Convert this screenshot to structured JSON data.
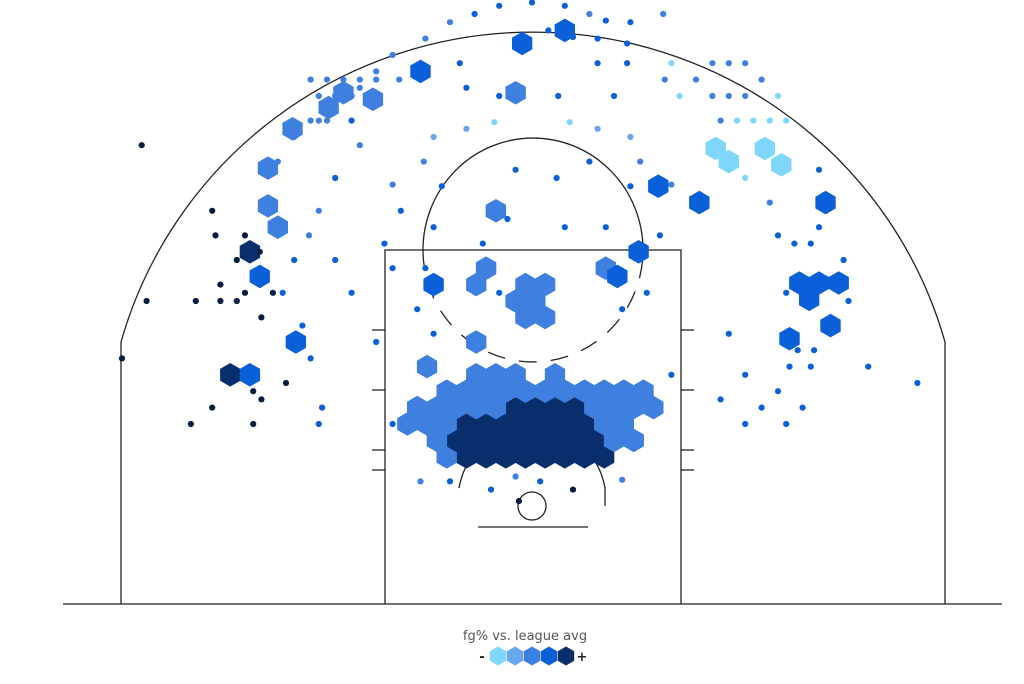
{
  "colors": {
    "tier1": "#7ed6fb",
    "tier2": "#6aa6ea",
    "tier3": "#3f7fe0",
    "tier4": "#0a60d8",
    "tier5": "#082f6b",
    "tier6": "#051e3f",
    "court": "#222222"
  },
  "legend": {
    "title": "fg% vs. league avg",
    "minus": "-",
    "plus": "+",
    "tiers": [
      "tier1",
      "tier2",
      "tier3",
      "tier4",
      "tier5"
    ]
  },
  "chart_data": {
    "type": "hexbin",
    "x_units": "ft from basket (left/right)",
    "y_units": "ft from baseline",
    "xlim": [
      -25,
      25
    ],
    "ylim": [
      0,
      35
    ],
    "hex_step_ft": 1.2,
    "shots": [
      [
        0.8,
        3.0,
        5,
        1
      ],
      [
        -0.4,
        3.0,
        5,
        1
      ],
      [
        2.0,
        3.0,
        5,
        1
      ],
      [
        -1.6,
        3.0,
        5,
        1
      ],
      [
        3.2,
        3.0,
        5,
        1
      ],
      [
        -2.8,
        3.0,
        5,
        1
      ],
      [
        4.4,
        3.0,
        5,
        1
      ],
      [
        -4.0,
        3.0,
        5,
        1
      ],
      [
        -5.2,
        3.0,
        3,
        1
      ],
      [
        0.2,
        4.0,
        5,
        1
      ],
      [
        -1.0,
        4.0,
        5,
        1
      ],
      [
        1.4,
        4.0,
        5,
        1
      ],
      [
        2.6,
        4.0,
        5,
        1
      ],
      [
        -2.2,
        4.0,
        5,
        1
      ],
      [
        3.8,
        4.0,
        5,
        1
      ],
      [
        -3.4,
        4.0,
        5,
        1
      ],
      [
        5.0,
        4.0,
        3,
        1
      ],
      [
        -4.6,
        4.0,
        5,
        1
      ],
      [
        -5.8,
        4.0,
        3,
        1
      ],
      [
        6.2,
        4.0,
        3,
        1
      ],
      [
        0.8,
        5.0,
        5,
        1
      ],
      [
        -0.4,
        5.0,
        5,
        1
      ],
      [
        2.0,
        5.0,
        5,
        1
      ],
      [
        -1.6,
        5.0,
        5,
        1
      ],
      [
        3.2,
        5.0,
        5,
        1
      ],
      [
        -2.8,
        5.0,
        5,
        1
      ],
      [
        4.4,
        5.0,
        3,
        1
      ],
      [
        -4.0,
        5.0,
        5,
        1
      ],
      [
        -5.2,
        5.0,
        3,
        1
      ],
      [
        5.6,
        5.0,
        3,
        1
      ],
      [
        -6.4,
        5.0,
        3,
        1
      ],
      [
        -7.6,
        5.0,
        3,
        1
      ],
      [
        0.2,
        6.0,
        5,
        1
      ],
      [
        -1.0,
        6.0,
        5,
        1
      ],
      [
        1.4,
        6.0,
        5,
        1
      ],
      [
        2.6,
        6.0,
        5,
        1
      ],
      [
        -2.2,
        6.0,
        3,
        1
      ],
      [
        3.8,
        6.0,
        3,
        1
      ],
      [
        -3.4,
        6.0,
        3,
        1
      ],
      [
        5.0,
        6.0,
        3,
        1
      ],
      [
        -4.6,
        6.0,
        3,
        1
      ],
      [
        -5.8,
        6.0,
        3,
        1
      ],
      [
        6.2,
        6.0,
        3,
        1
      ],
      [
        -7.0,
        6.0,
        3,
        1
      ],
      [
        7.4,
        6.0,
        3,
        1
      ],
      [
        0.8,
        7.0,
        3,
        1
      ],
      [
        -0.4,
        7.0,
        3,
        1
      ],
      [
        2.0,
        7.0,
        3,
        1
      ],
      [
        -1.6,
        7.0,
        3,
        1
      ],
      [
        3.2,
        7.0,
        3,
        1
      ],
      [
        -2.8,
        7.0,
        3,
        1
      ],
      [
        4.4,
        7.0,
        3,
        1
      ],
      [
        -4.0,
        7.0,
        3,
        1
      ],
      [
        -5.2,
        7.0,
        3,
        1
      ],
      [
        5.6,
        7.0,
        3,
        1
      ],
      [
        6.8,
        7.0,
        3,
        1
      ],
      [
        -1.0,
        8.0,
        3,
        1
      ],
      [
        -2.2,
        8.0,
        3,
        1
      ],
      [
        -3.4,
        8.0,
        3,
        1
      ],
      [
        1.4,
        8.0,
        3,
        1
      ],
      [
        -6.4,
        8.5,
        3,
        1
      ],
      [
        -3.4,
        10.0,
        3,
        1
      ],
      [
        -0.4,
        11.5,
        3,
        1
      ],
      [
        0.8,
        11.5,
        3,
        1
      ],
      [
        -1.0,
        12.5,
        3,
        1
      ],
      [
        0.2,
        12.5,
        3,
        1
      ],
      [
        -0.4,
        13.5,
        3,
        1
      ],
      [
        0.8,
        13.5,
        3,
        1
      ],
      [
        -3.4,
        13.5,
        3,
        1
      ],
      [
        -2.8,
        14.5,
        3,
        1
      ],
      [
        -2.2,
        18.0,
        3,
        1
      ],
      [
        4.5,
        14.5,
        3,
        1
      ],
      [
        -6.0,
        13.5,
        4,
        1
      ],
      [
        2.0,
        29.0,
        4,
        1
      ],
      [
        -0.6,
        28.2,
        4,
        1
      ],
      [
        -1.0,
        25.2,
        3,
        1
      ],
      [
        5.2,
        14.0,
        4,
        1
      ],
      [
        6.5,
        15.5,
        4,
        1
      ],
      [
        -6.8,
        26.5,
        4,
        1
      ],
      [
        -9.7,
        24.8,
        3,
        1
      ],
      [
        -11.5,
        25.2,
        3,
        1
      ],
      [
        -12.4,
        24.3,
        3,
        1
      ],
      [
        -14.6,
        23.0,
        3,
        1
      ],
      [
        -16.1,
        20.6,
        3,
        1
      ],
      [
        -16.1,
        18.3,
        3,
        1
      ],
      [
        -15.5,
        17.0,
        3,
        1
      ],
      [
        -17.2,
        15.5,
        5,
        1
      ],
      [
        -16.6,
        14.0,
        4,
        1
      ],
      [
        -18.4,
        8.0,
        5,
        1
      ],
      [
        -17.2,
        8.0,
        4,
        1
      ],
      [
        -14.4,
        10.0,
        4,
        1
      ],
      [
        10.2,
        18.5,
        4,
        1
      ],
      [
        7.7,
        19.5,
        4,
        1
      ],
      [
        11.2,
        21.8,
        1,
        1
      ],
      [
        12.0,
        21.0,
        1,
        1
      ],
      [
        14.2,
        21.8,
        1,
        1
      ],
      [
        15.2,
        20.8,
        1,
        1
      ],
      [
        17.9,
        18.5,
        4,
        1
      ],
      [
        16.3,
        13.6,
        4,
        1
      ],
      [
        17.5,
        13.6,
        4,
        1
      ],
      [
        18.7,
        13.6,
        4,
        1
      ],
      [
        16.9,
        12.6,
        4,
        1
      ],
      [
        18.2,
        11.0,
        4,
        1
      ],
      [
        15.7,
        10.2,
        4,
        1
      ],
      [
        -8.5,
        19.6,
        3,
        0
      ],
      [
        8.5,
        19.6,
        3,
        0
      ],
      [
        -8.1,
        26.0,
        3,
        0
      ],
      [
        8.1,
        26.0,
        3,
        0
      ],
      [
        -6.6,
        21.0,
        3,
        0
      ],
      [
        6.6,
        21.0,
        3,
        0
      ],
      [
        -6.0,
        22.5,
        2,
        0
      ],
      [
        6.0,
        22.5,
        2,
        0
      ],
      [
        -4.0,
        23.0,
        2,
        0
      ],
      [
        4.0,
        23.0,
        2,
        0
      ],
      [
        -2.3,
        23.4,
        1,
        0
      ],
      [
        2.3,
        23.4,
        1,
        0
      ],
      [
        -10.5,
        22.0,
        3,
        0
      ],
      [
        -12.0,
        20.0,
        4,
        0
      ],
      [
        -13.0,
        18.0,
        3,
        0
      ],
      [
        -13.6,
        16.5,
        3,
        0
      ],
      [
        -14.5,
        15.0,
        4,
        0
      ],
      [
        -15.2,
        13.0,
        4,
        0
      ],
      [
        -14.0,
        11.0,
        4,
        0
      ],
      [
        -13.5,
        9.0,
        4,
        0
      ],
      [
        -12.8,
        6.0,
        4,
        0
      ],
      [
        -15.0,
        7.5,
        6,
        0
      ],
      [
        -19.5,
        6.0,
        6,
        0
      ],
      [
        -16.5,
        6.5,
        6,
        0
      ],
      [
        -17.0,
        7.0,
        6,
        0
      ],
      [
        -20.5,
        12.5,
        6,
        0
      ],
      [
        -18.0,
        12.5,
        6,
        0
      ],
      [
        -19.0,
        13.5,
        6,
        0
      ],
      [
        -18.0,
        15.0,
        6,
        0
      ],
      [
        -15.8,
        13.0,
        6,
        0
      ],
      [
        -19.3,
        16.5,
        6,
        0
      ],
      [
        -17.5,
        16.5,
        6,
        0
      ],
      [
        -16.6,
        15.5,
        6,
        0
      ],
      [
        -17.5,
        13.0,
        6,
        0
      ],
      [
        -16.5,
        11.5,
        6,
        0
      ],
      [
        -19.0,
        12.5,
        6,
        0
      ],
      [
        -19.5,
        18.0,
        6,
        0
      ],
      [
        -25.0,
        9.0,
        6,
        0
      ],
      [
        -23.5,
        12.5,
        6,
        0
      ],
      [
        -23.8,
        22.0,
        6,
        0
      ],
      [
        -15.5,
        21.0,
        3,
        0
      ],
      [
        -14.5,
        22.5,
        3,
        0
      ],
      [
        -13.0,
        23.5,
        3,
        0
      ],
      [
        -12.0,
        24.5,
        3,
        0
      ],
      [
        -10.5,
        25.5,
        3,
        0
      ],
      [
        -9.5,
        26.5,
        3,
        0
      ],
      [
        -8.5,
        27.5,
        3,
        0
      ],
      [
        -6.5,
        28.5,
        3,
        0
      ],
      [
        -5.0,
        29.5,
        3,
        0
      ],
      [
        -3.5,
        30.0,
        4,
        0
      ],
      [
        -2.0,
        30.5,
        4,
        0
      ],
      [
        0.0,
        30.7,
        4,
        0
      ],
      [
        2.0,
        30.5,
        4,
        0
      ],
      [
        3.5,
        30.0,
        3,
        0
      ],
      [
        4.5,
        29.6,
        4,
        0
      ],
      [
        6.0,
        29.5,
        4,
        0
      ],
      [
        8.0,
        30.0,
        3,
        0
      ],
      [
        -13.5,
        26.0,
        3,
        0
      ],
      [
        -12.5,
        26.0,
        3,
        0
      ],
      [
        -11.5,
        26.0,
        3,
        0
      ],
      [
        -10.5,
        26.0,
        3,
        0
      ],
      [
        -9.5,
        26.0,
        3,
        0
      ],
      [
        -13.0,
        25.0,
        3,
        0
      ],
      [
        -12.0,
        25.0,
        3,
        0
      ],
      [
        -11.0,
        25.0,
        3,
        0
      ],
      [
        -10.0,
        25.0,
        3,
        0
      ],
      [
        -13.5,
        23.5,
        3,
        0
      ],
      [
        -12.5,
        23.5,
        3,
        0
      ],
      [
        -11.0,
        23.5,
        4,
        0
      ],
      [
        -4.4,
        27.0,
        4,
        0
      ],
      [
        -4.0,
        25.5,
        4,
        0
      ],
      [
        -2.0,
        25.0,
        4,
        0
      ],
      [
        1.6,
        25.0,
        4,
        0
      ],
      [
        4.0,
        27.0,
        4,
        0
      ],
      [
        5.0,
        25.0,
        4,
        0
      ],
      [
        5.8,
        27.0,
        4,
        0
      ],
      [
        5.8,
        28.2,
        4,
        0
      ],
      [
        4.0,
        28.5,
        4,
        0
      ],
      [
        2.5,
        28.6,
        4,
        0
      ],
      [
        1.0,
        29.0,
        4,
        0
      ],
      [
        8.5,
        27.0,
        1,
        0
      ],
      [
        10.0,
        26.0,
        3,
        0
      ],
      [
        11.0,
        27.0,
        3,
        0
      ],
      [
        12.0,
        27.0,
        3,
        0
      ],
      [
        13.0,
        27.0,
        3,
        0
      ],
      [
        14.0,
        26.0,
        3,
        0
      ],
      [
        11.0,
        25.0,
        3,
        0
      ],
      [
        12.0,
        25.0,
        3,
        0
      ],
      [
        13.0,
        25.0,
        3,
        0
      ],
      [
        15.0,
        25.0,
        1,
        0
      ],
      [
        9.0,
        25.0,
        1,
        0
      ],
      [
        11.5,
        23.5,
        3,
        0
      ],
      [
        12.5,
        23.5,
        1,
        0
      ],
      [
        13.5,
        23.5,
        1,
        0
      ],
      [
        14.5,
        23.5,
        1,
        0
      ],
      [
        15.5,
        23.5,
        1,
        0
      ],
      [
        13.0,
        20.0,
        1,
        0
      ],
      [
        14.5,
        18.5,
        3,
        0
      ],
      [
        17.5,
        20.5,
        4,
        0
      ],
      [
        17.5,
        17.0,
        4,
        0
      ],
      [
        15.0,
        16.5,
        4,
        0
      ],
      [
        16.0,
        16.0,
        4,
        0
      ],
      [
        17.0,
        16.0,
        4,
        0
      ],
      [
        15.5,
        13.0,
        4,
        0
      ],
      [
        19.0,
        15.0,
        4,
        0
      ],
      [
        19.3,
        12.5,
        4,
        0
      ],
      [
        15.7,
        8.5,
        4,
        0
      ],
      [
        16.2,
        9.5,
        4,
        0
      ],
      [
        17.0,
        8.5,
        4,
        0
      ],
      [
        17.2,
        9.5,
        4,
        0
      ],
      [
        13.0,
        8.0,
        4,
        0
      ],
      [
        12.0,
        10.5,
        4,
        0
      ],
      [
        11.5,
        6.5,
        4,
        0
      ],
      [
        14.0,
        6.0,
        4,
        0
      ],
      [
        15.0,
        7.0,
        4,
        0
      ],
      [
        16.5,
        6.0,
        4,
        0
      ],
      [
        20.5,
        8.5,
        4,
        0
      ],
      [
        23.5,
        7.5,
        4,
        0
      ],
      [
        13.0,
        5.0,
        4,
        0
      ],
      [
        15.5,
        5.0,
        4,
        0
      ],
      [
        -20.8,
        5.0,
        6,
        0
      ],
      [
        -17.0,
        5.0,
        6,
        0
      ],
      [
        -13.0,
        5.0,
        4,
        0
      ],
      [
        -8.5,
        5.0,
        4,
        0
      ],
      [
        -12.0,
        15.0,
        4,
        0
      ],
      [
        -11.0,
        13.0,
        4,
        0
      ],
      [
        -9.5,
        10.0,
        4,
        0
      ],
      [
        -9.0,
        16.0,
        4,
        0
      ],
      [
        -8.5,
        14.5,
        4,
        0
      ],
      [
        -8.0,
        18.0,
        4,
        0
      ],
      [
        -7.0,
        12.0,
        4,
        0
      ],
      [
        -6.5,
        14.5,
        4,
        0
      ],
      [
        -6.0,
        17.0,
        4,
        0
      ],
      [
        -5.5,
        19.5,
        4,
        0
      ],
      [
        -3.0,
        16.0,
        4,
        0
      ],
      [
        -2.0,
        13.0,
        4,
        0
      ],
      [
        -1.5,
        17.5,
        4,
        0
      ],
      [
        -1.0,
        20.5,
        4,
        0
      ],
      [
        1.5,
        20.0,
        4,
        0
      ],
      [
        2.0,
        17.0,
        4,
        0
      ],
      [
        3.5,
        21.0,
        4,
        0
      ],
      [
        4.5,
        17.0,
        4,
        0
      ],
      [
        6.0,
        19.5,
        4,
        0
      ],
      [
        7.0,
        13.0,
        4,
        0
      ],
      [
        7.8,
        16.5,
        4,
        0
      ],
      [
        8.5,
        8.0,
        4,
        0
      ],
      [
        -6.0,
        10.5,
        4,
        0
      ],
      [
        5.5,
        12.0,
        4,
        0
      ],
      [
        -2.5,
        1.0,
        4,
        0
      ],
      [
        -1.0,
        1.8,
        3,
        0
      ],
      [
        0.5,
        1.5,
        4,
        0
      ],
      [
        2.5,
        1.0,
        6,
        0
      ],
      [
        -0.8,
        0.3,
        6,
        0
      ],
      [
        -5.0,
        1.5,
        4,
        0
      ],
      [
        -6.8,
        1.5,
        3,
        0
      ],
      [
        5.5,
        1.6,
        3,
        0
      ]
    ]
  }
}
